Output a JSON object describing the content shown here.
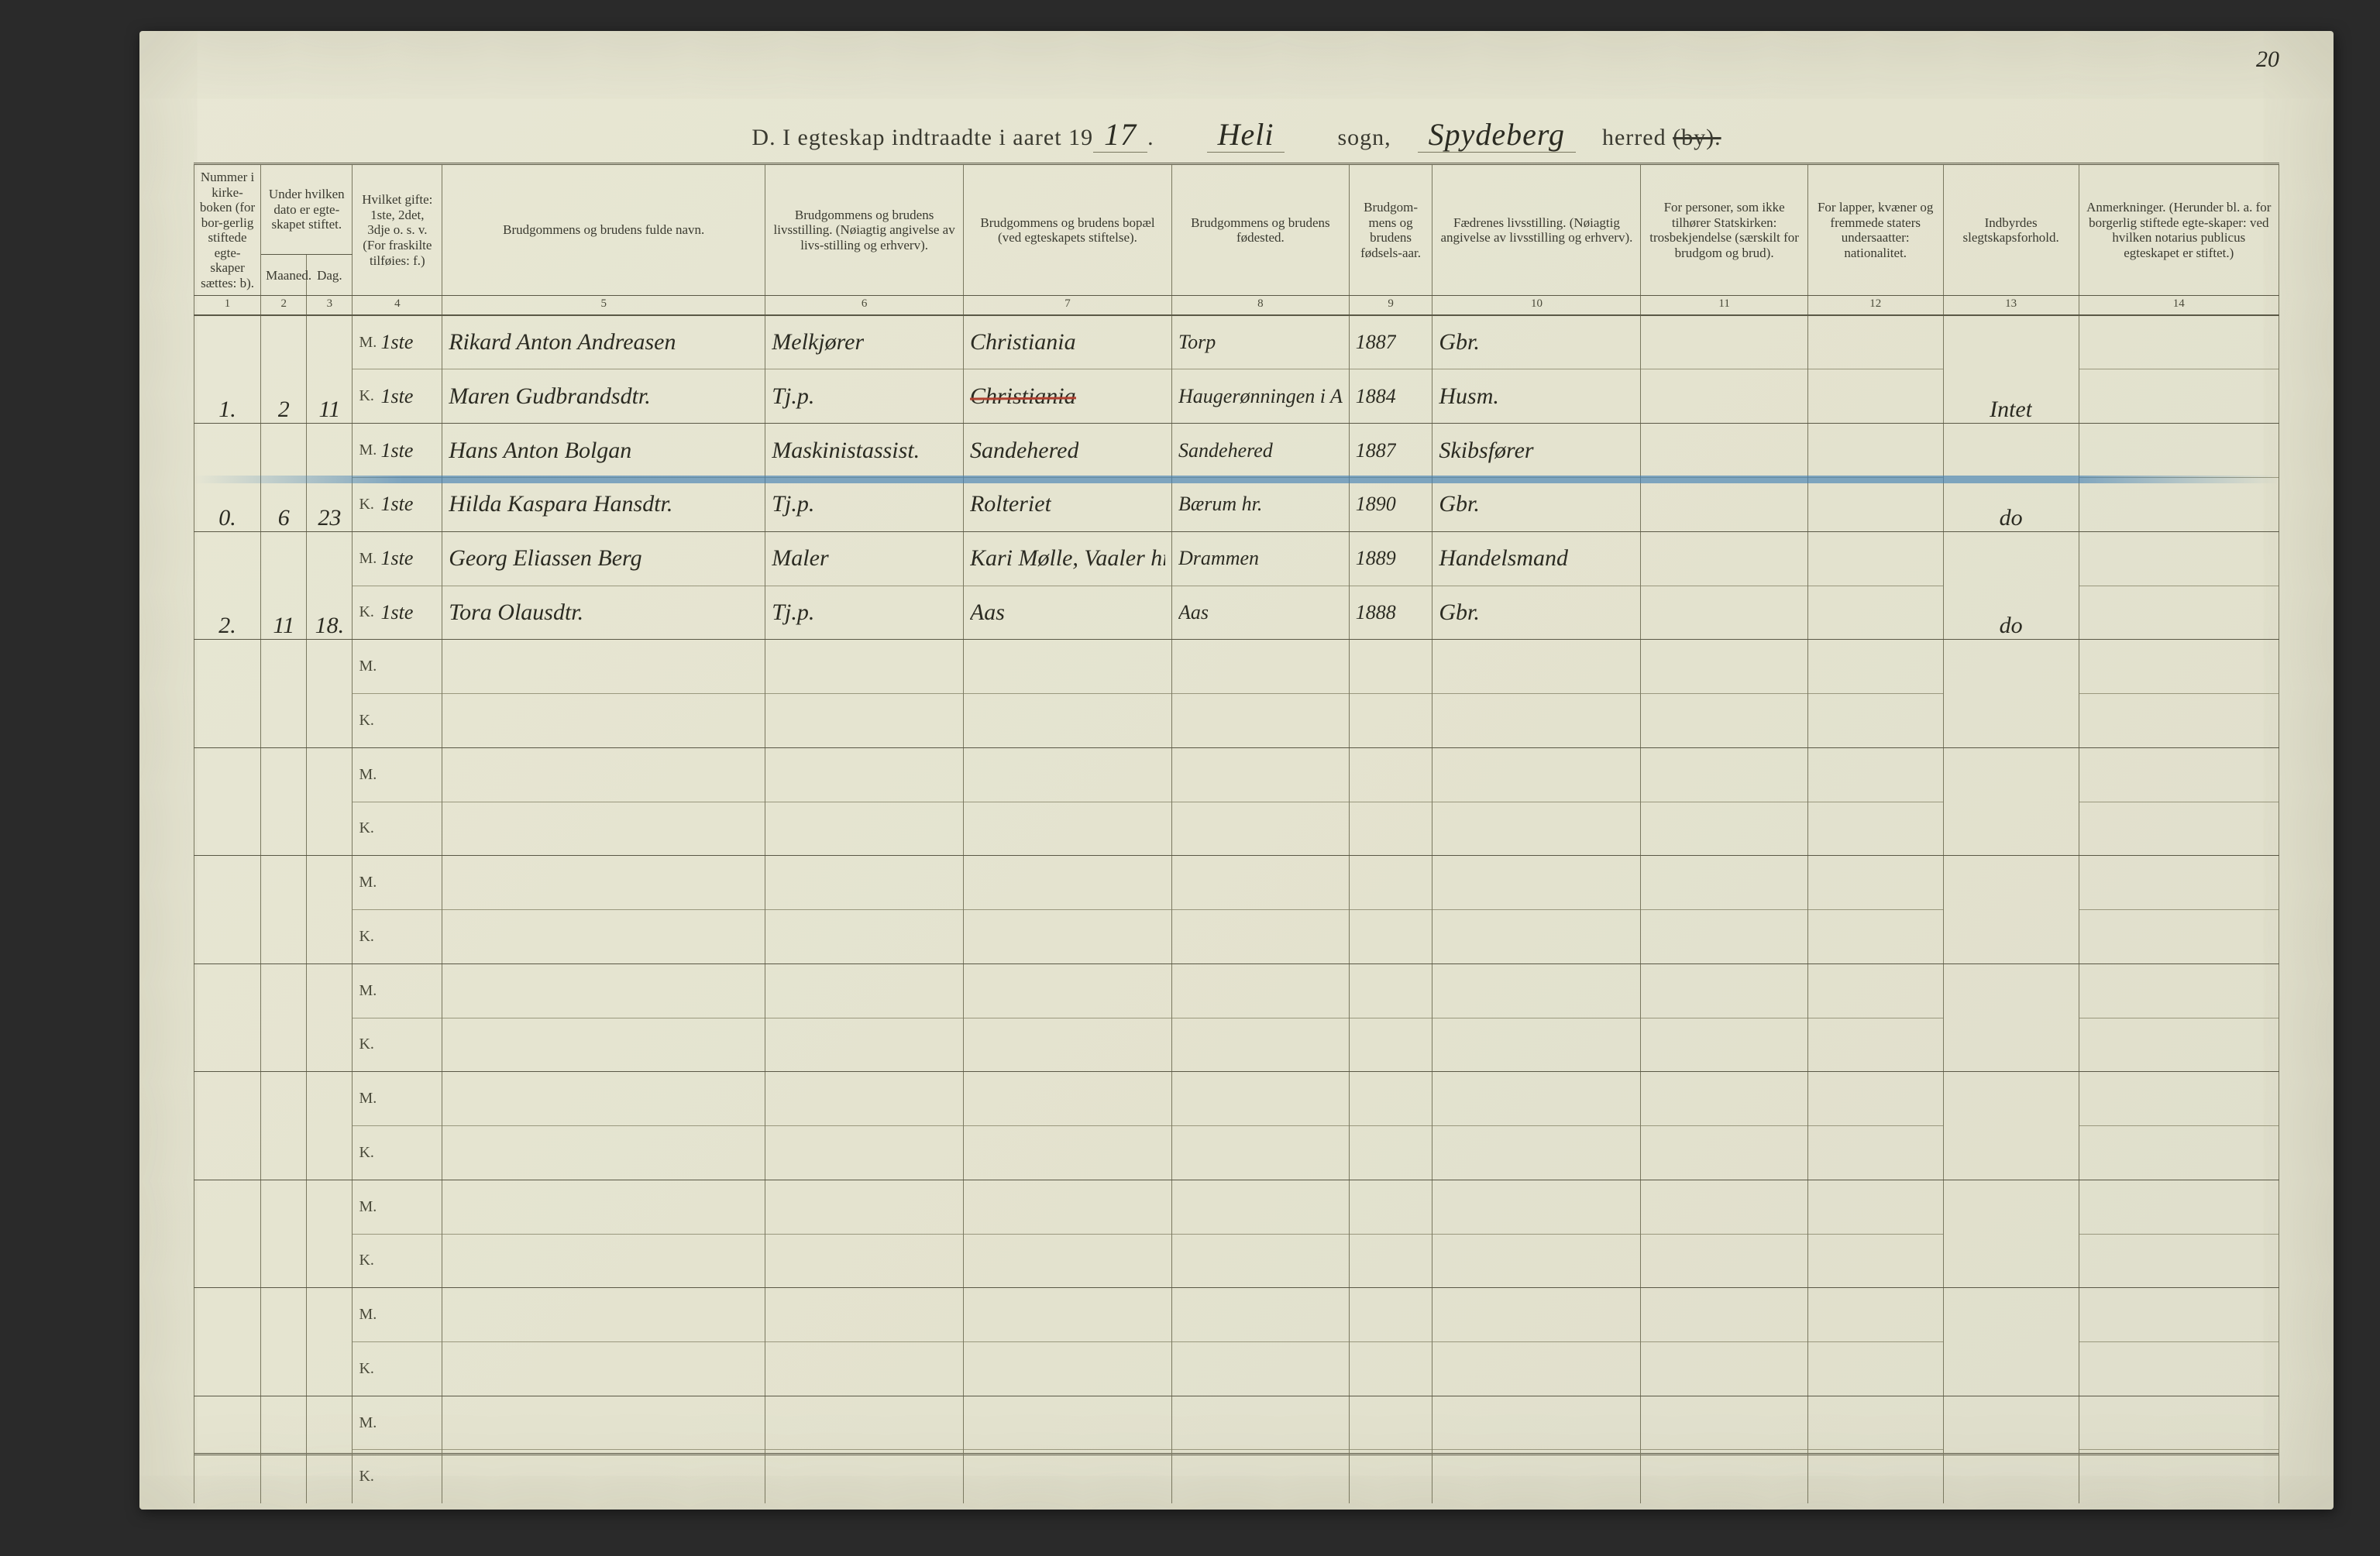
{
  "page_number_handwritten": "20",
  "title": {
    "prefix": "D.  I egteskap indtraadte i aaret 19",
    "year_hand": "17",
    "period": ".",
    "sogn_hand": "Heli",
    "sogn_label": "sogn,",
    "herred_hand": "Spydeberg",
    "herred_label": "herred",
    "struck_word": "(by)."
  },
  "columns": {
    "c1": {
      "header": "Nummer i kirke-boken (for bor-gerlig stiftede egte-skaper sættes: b).",
      "num": "1"
    },
    "c2": {
      "top": "Under hvilken dato er egte-skapet stiftet.",
      "maaned": "Maaned.",
      "dag": "Dag.",
      "num_m": "2",
      "num_d": "3"
    },
    "c4": {
      "header": "Hvilket gifte: 1ste, 2det, 3dje o. s. v. (For fraskilte tilføies: f.)",
      "num": "4"
    },
    "c5": {
      "header": "Brudgommens og brudens fulde navn.",
      "num": "5"
    },
    "c6": {
      "header": "Brudgommens og brudens livsstilling. (Nøiagtig angivelse av livs-stilling og erhverv).",
      "num": "6"
    },
    "c7": {
      "header": "Brudgommens og brudens bopæl (ved egteskapets stiftelse).",
      "num": "7"
    },
    "c8": {
      "header": "Brudgommens og brudens fødested.",
      "num": "8"
    },
    "c9": {
      "header": "Brudgom-mens og brudens fødsels-aar.",
      "num": "9"
    },
    "c10": {
      "header": "Fædrenes livsstilling. (Nøiagtig angivelse av livsstilling og erhverv).",
      "num": "10"
    },
    "c11": {
      "header": "For personer, som ikke tilhører Statskirken: trosbekjendelse (særskilt for brudgom og brud).",
      "num": "11"
    },
    "c12": {
      "header": "For lapper, kvæner og fremmede staters undersaatter: nationalitet.",
      "num": "12"
    },
    "c13": {
      "header": "Indbyrdes slegtskapsforhold.",
      "num": "13"
    },
    "c14": {
      "header": "Anmerkninger. (Herunder bl. a. for borgerlig stiftede egte-skaper: ved hvilken notarius publicus egteskapet er stiftet.)",
      "num": "14"
    }
  },
  "mk": {
    "m": "M.",
    "k": "K."
  },
  "entries": [
    {
      "num": "1.",
      "maaned": "2",
      "dag": "11",
      "gifte_m": "1ste",
      "gifte_k": "1ste",
      "name_m": "Rikard Anton Andreasen",
      "name_k": "Maren Gudbrandsdtr.",
      "stilling_m": "Melkjører",
      "stilling_k": "Tj.p.",
      "bopael_m": "Christiania",
      "bopael_k": "Christiania",
      "bopael_k_strike": true,
      "fodested_m": "Torp",
      "fodested_k": "Haugerønningen i Aadalen hr.",
      "aar_m": "1887",
      "aar_k": "1884",
      "far_m": "Gbr.",
      "far_k": "Husm.",
      "slegt": "Intet"
    },
    {
      "num": "0.",
      "maaned": "6",
      "dag": "23",
      "gifte_m": "1ste",
      "gifte_k": "1ste",
      "name_m": "Hans Anton Bolgan",
      "name_k": "Hilda Kaspara Hansdtr.",
      "stilling_m": "Maskinistassist.",
      "stilling_k": "Tj.p.",
      "bopael_m": "Sandehered",
      "bopael_k": "Rolteriet",
      "fodested_m": "Sandehered",
      "fodested_k": "Bærum hr.",
      "aar_m": "1887",
      "aar_k": "1890",
      "far_m": "Skibsfører",
      "far_k": "Gbr.",
      "slegt": "do",
      "blue_strike": true
    },
    {
      "num": "2.",
      "maaned": "11",
      "dag": "18.",
      "gifte_m": "1ste",
      "gifte_k": "1ste",
      "name_m": "Georg Eliassen Berg",
      "name_k": "Tora Olausdtr.",
      "stilling_m": "Maler",
      "stilling_k": "Tj.p.",
      "bopael_m": "Kari Mølle, Vaaler hr.",
      "bopael_k": "Aas",
      "fodested_m": "Drammen",
      "fodested_k": "Aas",
      "aar_m": "1889",
      "aar_k": "1888",
      "far_m": "Handelsmand",
      "far_k": "Gbr.",
      "slegt": "do"
    }
  ],
  "empty_rows": 8,
  "style": {
    "page_bg": "#e4e3cf",
    "ink": "#2b2b22",
    "rule": "#7a7860",
    "rule_dark": "#5a5846",
    "red": "#b04030",
    "blue": "rgba(70,130,180,0.65)",
    "header_fontsize_pt": 13,
    "hand_fontsize_pt": 22
  }
}
